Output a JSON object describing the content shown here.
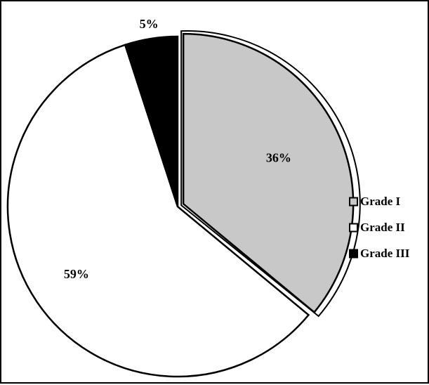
{
  "chart_data": {
    "type": "pie",
    "title": "",
    "categories": [
      "Grade I",
      "Grade II",
      "Grade III"
    ],
    "values": [
      36,
      59,
      5
    ],
    "value_labels": [
      "36%",
      "59%",
      "5%"
    ],
    "colors": [
      "#c8c8c8",
      "#ffffff",
      "#000000"
    ],
    "exploded": [
      "Grade I"
    ],
    "legend_position": "right",
    "legend": [
      {
        "label": "Grade I",
        "color": "#c8c8c8"
      },
      {
        "label": "Grade II",
        "color": "#ffffff"
      },
      {
        "label": "Grade III",
        "color": "#000000"
      }
    ]
  }
}
